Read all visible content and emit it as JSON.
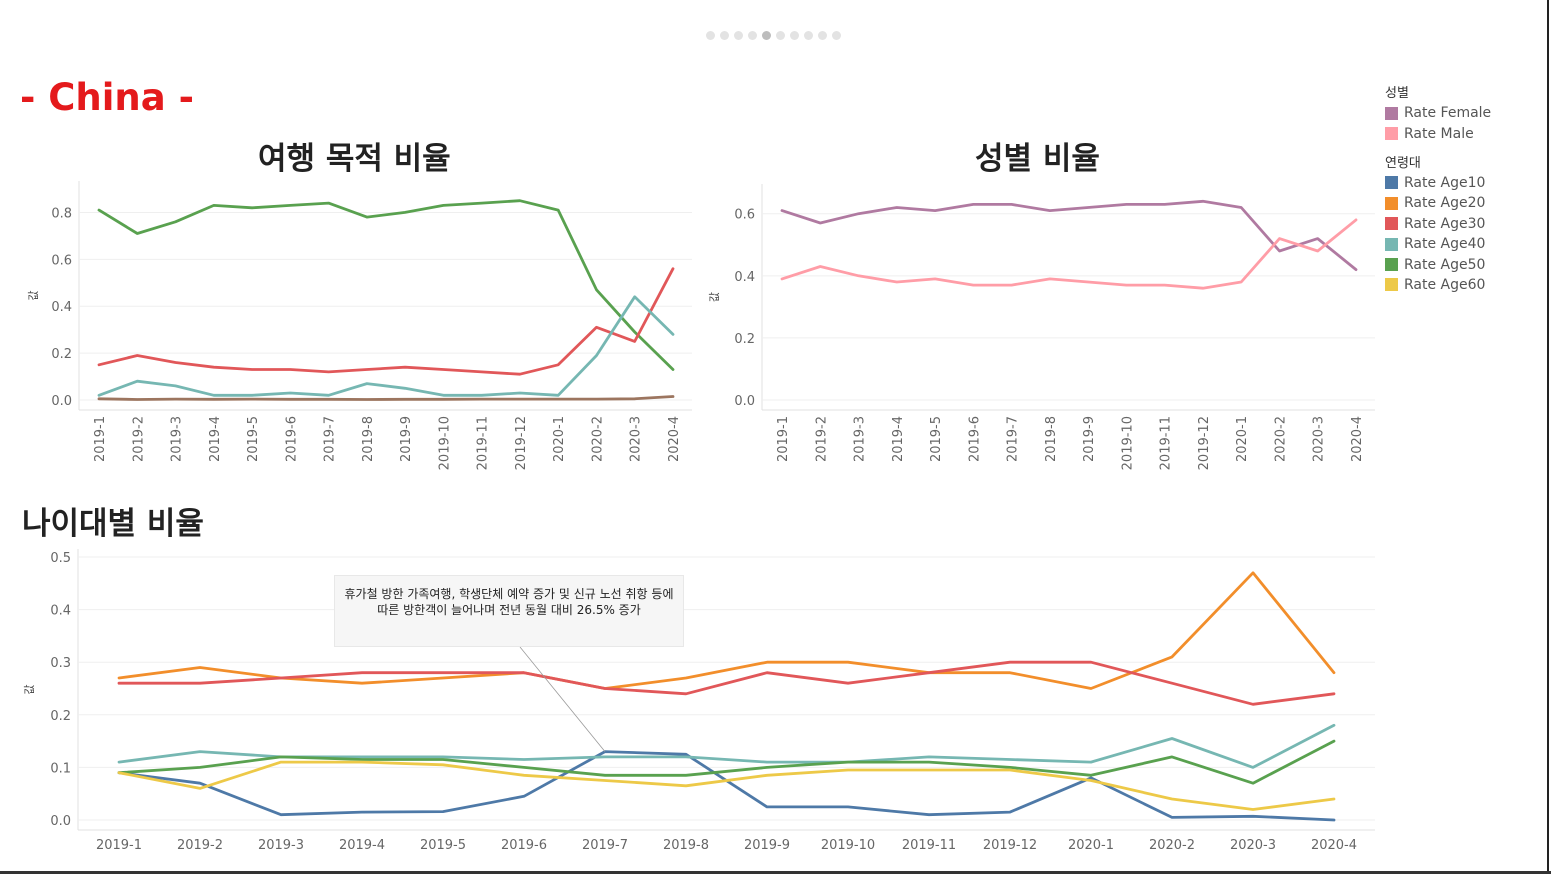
{
  "country_title": "- China -",
  "pager": {
    "count": 10,
    "active_index": 4
  },
  "legend": {
    "gender_title": "성별",
    "gender_items": [
      {
        "label": "Rate Female",
        "color": "#b07aa1"
      },
      {
        "label": "Rate Male",
        "color": "#ff9da7"
      }
    ],
    "age_title": "연령대",
    "age_items": [
      {
        "label": "Rate Age10",
        "color": "#4e79a7"
      },
      {
        "label": "Rate Age20",
        "color": "#f28e2b"
      },
      {
        "label": "Rate Age30",
        "color": "#e15759"
      },
      {
        "label": "Rate Age40",
        "color": "#76b7b2"
      },
      {
        "label": "Rate Age50",
        "color": "#59a14f"
      },
      {
        "label": "Rate Age60",
        "color": "#edc948"
      }
    ]
  },
  "annotation": {
    "text": "휴가철 방한 가족여행, 학생단체 예약 증가 및 신규 노선 취항 등에 따른 방한객이 늘어나며 전년 동월 대비 26.5% 증가",
    "anchor_category": "2019-7"
  },
  "chart_data": [
    {
      "id": "purpose",
      "type": "line",
      "title": "여행 목적 비율",
      "ylabel": "값",
      "xlabel": "",
      "ylim": [
        0,
        0.9
      ],
      "yticks": [
        "0.0",
        "0.2",
        "0.4",
        "0.6",
        "0.8"
      ],
      "grid": true,
      "x_label_orientation": "vertical",
      "categories": [
        "2019-1",
        "2019-2",
        "2019-3",
        "2019-4",
        "2019-5",
        "2019-6",
        "2019-7",
        "2019-8",
        "2019-9",
        "2019-10",
        "2019-11",
        "2019-12",
        "2020-1",
        "2020-2",
        "2020-3",
        "2020-4"
      ],
      "series": [
        {
          "color": "#59a14f",
          "values": [
            0.81,
            0.71,
            0.76,
            0.83,
            0.82,
            0.83,
            0.84,
            0.78,
            0.8,
            0.83,
            0.84,
            0.85,
            0.81,
            0.47,
            0.29,
            0.13
          ]
        },
        {
          "color": "#e15759",
          "values": [
            0.15,
            0.19,
            0.16,
            0.14,
            0.13,
            0.13,
            0.12,
            0.13,
            0.14,
            0.13,
            0.12,
            0.11,
            0.15,
            0.31,
            0.25,
            0.56
          ]
        },
        {
          "color": "#76b7b2",
          "values": [
            0.02,
            0.08,
            0.06,
            0.02,
            0.02,
            0.03,
            0.02,
            0.07,
            0.05,
            0.02,
            0.02,
            0.03,
            0.02,
            0.19,
            0.44,
            0.28
          ]
        },
        {
          "color": "#9c755f",
          "values": [
            0.005,
            0.002,
            0.004,
            0.003,
            0.004,
            0.003,
            0.003,
            0.002,
            0.003,
            0.003,
            0.004,
            0.004,
            0.004,
            0.004,
            0.005,
            0.015
          ]
        }
      ]
    },
    {
      "id": "gender",
      "type": "line",
      "title": "성별 비율",
      "ylabel": "값",
      "xlabel": "",
      "ylim": [
        0,
        0.67
      ],
      "yticks": [
        "0.0",
        "0.2",
        "0.4",
        "0.6"
      ],
      "grid": true,
      "x_label_orientation": "vertical",
      "categories": [
        "2019-1",
        "2019-2",
        "2019-3",
        "2019-4",
        "2019-5",
        "2019-6",
        "2019-7",
        "2019-8",
        "2019-9",
        "2019-10",
        "2019-11",
        "2019-12",
        "2020-1",
        "2020-2",
        "2020-3",
        "2020-4"
      ],
      "series": [
        {
          "name": "Rate Female",
          "color": "#b07aa1",
          "values": [
            0.61,
            0.57,
            0.6,
            0.62,
            0.61,
            0.63,
            0.63,
            0.61,
            0.62,
            0.63,
            0.63,
            0.64,
            0.62,
            0.48,
            0.52,
            0.42
          ]
        },
        {
          "name": "Rate Male",
          "color": "#ff9da7",
          "values": [
            0.39,
            0.43,
            0.4,
            0.38,
            0.39,
            0.37,
            0.37,
            0.39,
            0.38,
            0.37,
            0.37,
            0.36,
            0.38,
            0.52,
            0.48,
            0.58
          ]
        }
      ]
    },
    {
      "id": "age",
      "type": "line",
      "title": "나이대별 비율",
      "ylabel": "값",
      "xlabel": "",
      "ylim": [
        0,
        0.5
      ],
      "yticks": [
        "0.0",
        "0.1",
        "0.2",
        "0.3",
        "0.4",
        "0.5"
      ],
      "grid": true,
      "x_label_orientation": "horizontal",
      "categories": [
        "2019-1",
        "2019-2",
        "2019-3",
        "2019-4",
        "2019-5",
        "2019-6",
        "2019-7",
        "2019-8",
        "2019-9",
        "2019-10",
        "2019-11",
        "2019-12",
        "2020-1",
        "2020-2",
        "2020-3",
        "2020-4"
      ],
      "series": [
        {
          "name": "Rate Age10",
          "color": "#4e79a7",
          "values": [
            0.09,
            0.07,
            0.01,
            0.015,
            0.016,
            0.045,
            0.13,
            0.125,
            0.025,
            0.025,
            0.01,
            0.015,
            0.08,
            0.005,
            0.007,
            0.0
          ]
        },
        {
          "name": "Rate Age20",
          "color": "#f28e2b",
          "values": [
            0.27,
            0.29,
            0.27,
            0.26,
            0.27,
            0.28,
            0.25,
            0.27,
            0.3,
            0.3,
            0.28,
            0.28,
            0.25,
            0.31,
            0.47,
            0.28
          ]
        },
        {
          "name": "Rate Age30",
          "color": "#e15759",
          "values": [
            0.26,
            0.26,
            0.27,
            0.28,
            0.28,
            0.28,
            0.25,
            0.24,
            0.28,
            0.26,
            0.28,
            0.3,
            0.3,
            0.26,
            0.22,
            0.24
          ]
        },
        {
          "name": "Rate Age40",
          "color": "#76b7b2",
          "values": [
            0.11,
            0.13,
            0.12,
            0.12,
            0.12,
            0.115,
            0.12,
            0.12,
            0.11,
            0.11,
            0.12,
            0.115,
            0.11,
            0.155,
            0.1,
            0.18
          ]
        },
        {
          "name": "Rate Age50",
          "color": "#59a14f",
          "values": [
            0.09,
            0.1,
            0.12,
            0.115,
            0.115,
            0.1,
            0.085,
            0.085,
            0.1,
            0.11,
            0.11,
            0.1,
            0.085,
            0.12,
            0.07,
            0.15
          ]
        },
        {
          "name": "Rate Age60",
          "color": "#edc948",
          "values": [
            0.09,
            0.06,
            0.11,
            0.11,
            0.105,
            0.085,
            0.075,
            0.065,
            0.085,
            0.095,
            0.095,
            0.095,
            0.075,
            0.04,
            0.02,
            0.04
          ]
        }
      ]
    }
  ]
}
